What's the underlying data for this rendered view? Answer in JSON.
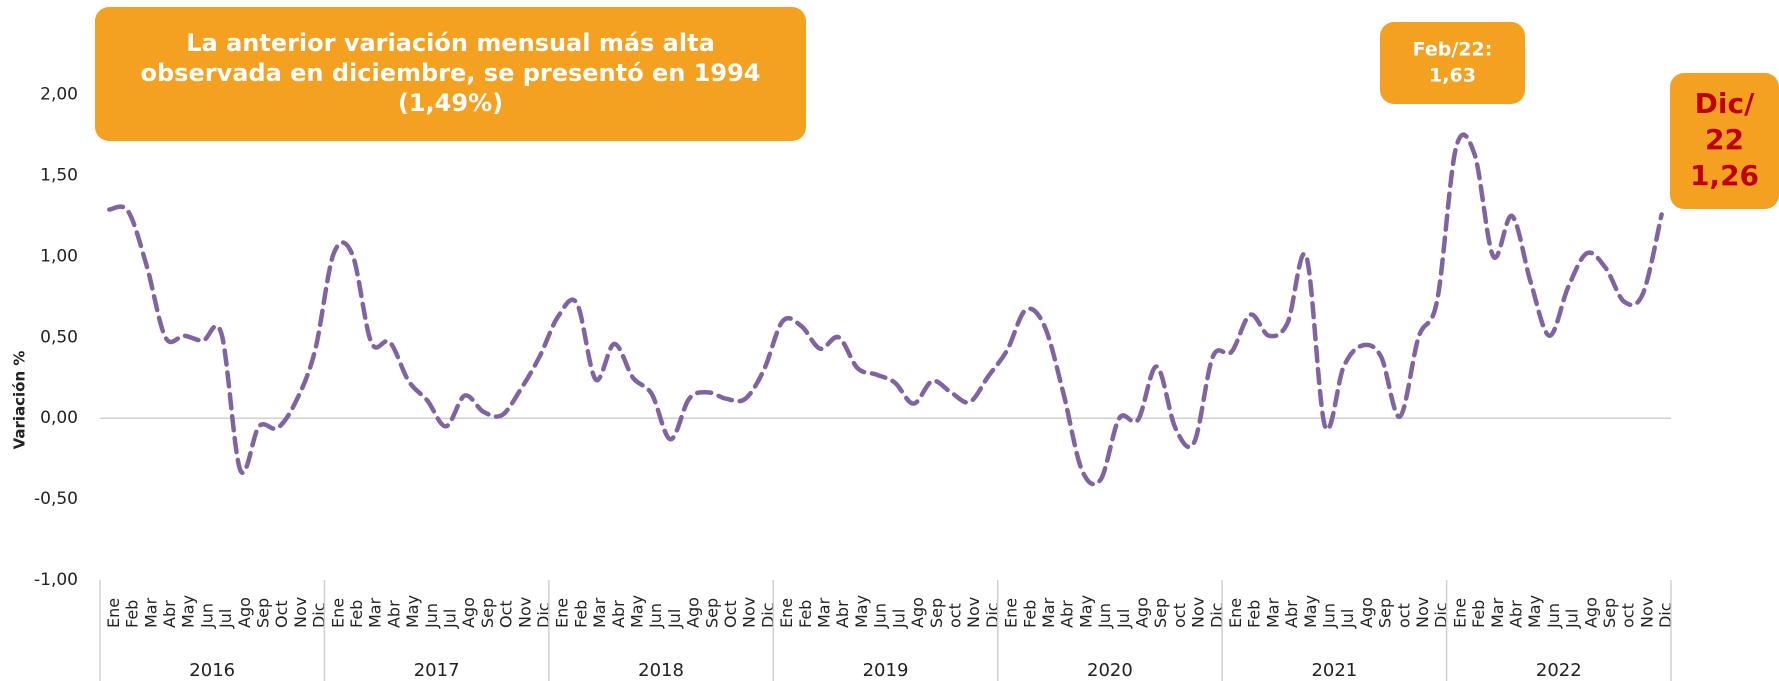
{
  "chart_data": {
    "type": "line",
    "y_label": "Variación %",
    "categories": [
      "Ene",
      "Feb",
      "Mar",
      "Abr",
      "May",
      "Jun",
      "Jul",
      "Ago",
      "Sep",
      "Oct",
      "Nov",
      "Dic",
      "Ene",
      "Feb",
      "Mar",
      "Abr",
      "May",
      "Jun",
      "Jul",
      "Ago",
      "Sep",
      "Oct",
      "Nov",
      "Dic",
      "Ene",
      "Feb",
      "Mar",
      "Abr",
      "May",
      "Jun",
      "Jul",
      "Ago",
      "Sep",
      "Oct",
      "Nov",
      "Dic",
      "Ene",
      "Feb",
      "Mar",
      "Abr",
      "May",
      "Jun",
      "Jul",
      "Ago",
      "Sep",
      "oct",
      "Nov",
      "Dic",
      "Ene",
      "Feb",
      "Mar",
      "Abr",
      "May",
      "Jun",
      "Jul",
      "Ago",
      "Sep",
      "oct",
      "Nov",
      "Dic",
      "Ene",
      "Feb",
      "Mar",
      "Abr",
      "May",
      "Jun",
      "Jul",
      "Ago",
      "Sep",
      "oct",
      "Nov",
      "Dic",
      "Ene",
      "Feb",
      "Mar",
      "Abr",
      "May",
      "Jun",
      "Jul",
      "Ago",
      "Sep",
      "oct",
      "Nov",
      "Dic"
    ],
    "years": [
      "2016",
      "2017",
      "2018",
      "2019",
      "2020",
      "2021",
      "2022"
    ],
    "series": [
      {
        "name": "Variación mensual",
        "color": "#8064a2",
        "values": [
          1.29,
          1.28,
          0.94,
          0.5,
          0.51,
          0.48,
          0.52,
          -0.32,
          -0.05,
          -0.06,
          0.11,
          0.42,
          1.02,
          1.01,
          0.47,
          0.47,
          0.23,
          0.11,
          -0.05,
          0.14,
          0.04,
          0.02,
          0.18,
          0.38,
          0.63,
          0.71,
          0.24,
          0.46,
          0.25,
          0.15,
          -0.13,
          0.12,
          0.16,
          0.12,
          0.12,
          0.3,
          0.6,
          0.57,
          0.43,
          0.5,
          0.31,
          0.27,
          0.22,
          0.09,
          0.23,
          0.16,
          0.1,
          0.26,
          0.42,
          0.67,
          0.57,
          0.16,
          -0.32,
          -0.38,
          0.0,
          -0.01,
          0.32,
          -0.06,
          -0.15,
          0.38,
          0.41,
          0.64,
          0.51,
          0.59,
          1.0,
          -0.05,
          0.32,
          0.45,
          0.38,
          0.01,
          0.5,
          0.73,
          1.67,
          1.63,
          1.0,
          1.25,
          0.84,
          0.51,
          0.81,
          1.02,
          0.93,
          0.72,
          0.77,
          1.26
        ]
      }
    ],
    "ylim": [
      -1,
      2.4
    ],
    "yticks": [
      {
        "value": -1,
        "label": "-1,00"
      },
      {
        "value": -0.5,
        "label": "-0,50"
      },
      {
        "value": 0,
        "label": "0,00"
      },
      {
        "value": 0.5,
        "label": "0,50"
      },
      {
        "value": 1,
        "label": "1,00"
      },
      {
        "value": 1.5,
        "label": "1,50"
      },
      {
        "value": 2,
        "label": "2,00"
      }
    ],
    "annotations": [
      {
        "lines": [
          "La anterior variación mensual más alta",
          "observada en diciembre, se presentó en 1994",
          "(1,49%)"
        ]
      },
      {
        "lines": [
          "Feb/22:",
          "1,63"
        ]
      },
      {
        "lines": [
          "Dic/",
          "22",
          "1,26"
        ]
      }
    ]
  }
}
